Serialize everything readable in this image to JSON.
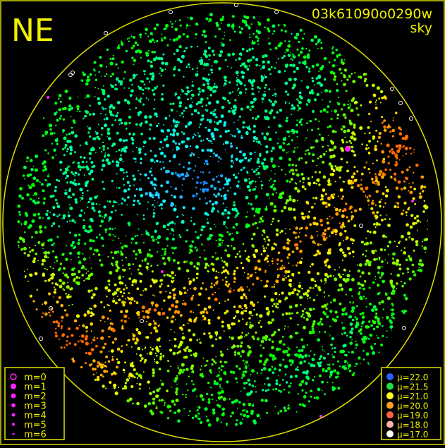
{
  "header": {
    "direction": "NE",
    "frame_id": "03k61090o0290w",
    "view": "sky"
  },
  "legends": {
    "magnitude": {
      "items": [
        "m=0",
        "m=1",
        "m=2",
        "m=3",
        "m=4",
        "m=5",
        "m=6"
      ]
    },
    "brightness": {
      "items": [
        "μ=22.0",
        "μ=21.5",
        "μ=21.0",
        "μ=20.0",
        "μ=19.0",
        "μ=18.0",
        "μ=17.0"
      ]
    }
  }
}
